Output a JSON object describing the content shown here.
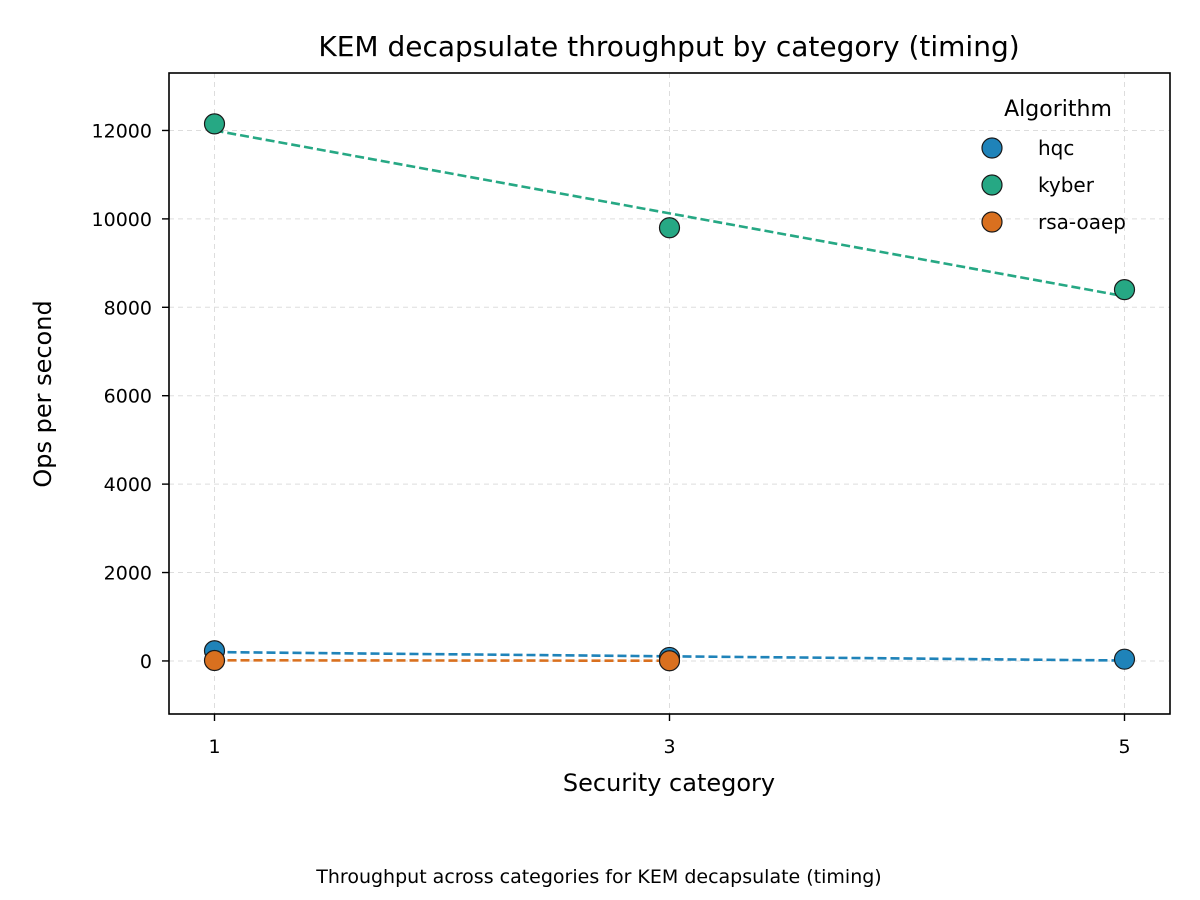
{
  "chart_data": {
    "type": "scatter",
    "title": "KEM decapsulate throughput by category (timing)",
    "xlabel": "Security category",
    "ylabel": "Ops per second",
    "caption": "Throughput across categories for KEM decapsulate (timing)",
    "xlim": [
      0.8,
      5.2
    ],
    "ylim": [
      -1200,
      13300
    ],
    "xticks": [
      1,
      3,
      5
    ],
    "yticks": [
      0,
      2000,
      4000,
      6000,
      8000,
      10000,
      12000
    ],
    "grid": true,
    "legend": {
      "title": "Algorithm",
      "placement": "top-right"
    },
    "series": [
      {
        "name": "hqc",
        "color": "#1f83b9",
        "x": [
          1,
          3,
          5
        ],
        "y": [
          230,
          80,
          40
        ],
        "trend": [
          [
            1,
            200
          ],
          [
            5,
            10
          ]
        ]
      },
      {
        "name": "kyber",
        "color": "#26a884",
        "x": [
          1,
          3,
          5
        ],
        "y": [
          12150,
          9800,
          8400
        ],
        "trend": [
          [
            1,
            12000
          ],
          [
            5,
            8250
          ]
        ]
      },
      {
        "name": "rsa-oaep",
        "color": "#d9701f",
        "x": [
          1,
          3
        ],
        "y": [
          10,
          5
        ],
        "trend": [
          [
            1,
            15
          ],
          [
            3,
            5
          ]
        ]
      }
    ]
  }
}
